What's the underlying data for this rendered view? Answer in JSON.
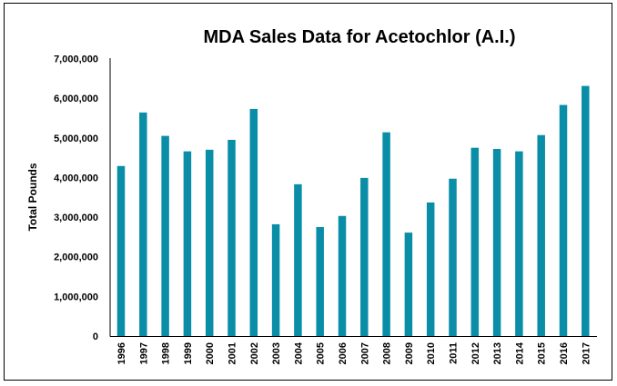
{
  "chart_data": {
    "type": "bar",
    "title": "MDA Sales Data for Acetochlor (A.I.)",
    "xlabel": "",
    "ylabel": "Total Pounds",
    "ylim": [
      0,
      7000000
    ],
    "yticks": [
      "0",
      "1,000,000",
      "2,000,000",
      "3,000,000",
      "4,000,000",
      "5,000,000",
      "6,000,000",
      "7,000,000"
    ],
    "grid": false,
    "legend": "none",
    "bar_color": "#0a8ea8",
    "categories": [
      "1996",
      "1997",
      "1998",
      "1999",
      "2000",
      "2001",
      "2002",
      "2003",
      "2004",
      "2005",
      "2006",
      "2007",
      "2008",
      "2009",
      "2010",
      "2011",
      "2012",
      "2013",
      "2014",
      "2015",
      "2016",
      "2017"
    ],
    "values": [
      4290000,
      5640000,
      5050000,
      4660000,
      4700000,
      4950000,
      5730000,
      2820000,
      3830000,
      2750000,
      3030000,
      3990000,
      5140000,
      2610000,
      3370000,
      3970000,
      4750000,
      4720000,
      4660000,
      5070000,
      5830000,
      6310000
    ]
  }
}
